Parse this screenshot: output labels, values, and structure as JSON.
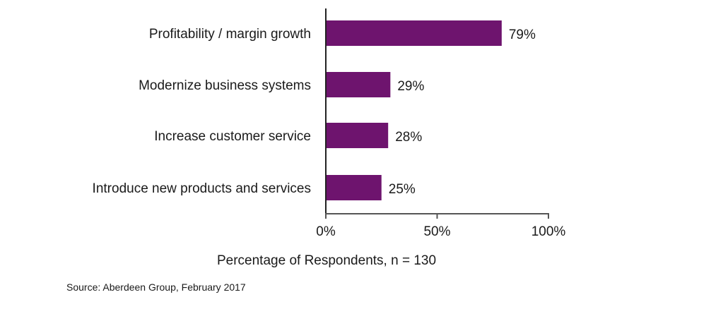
{
  "chart_data": {
    "type": "bar",
    "orientation": "horizontal",
    "title": "",
    "categories": [
      "Profitability  / margin growth",
      "Modernize business systems",
      "Increase customer service",
      "Introduce new products and services"
    ],
    "values": [
      79,
      29,
      28,
      25
    ],
    "value_labels": [
      "79%",
      "29%",
      "28%",
      "25%"
    ],
    "xlabel": "Percentage of Respondents, n = 130",
    "ylabel": "",
    "xlim": [
      0,
      100
    ],
    "xticks": [
      0,
      50,
      100
    ],
    "xtick_labels": [
      "0%",
      "50%",
      "100%"
    ],
    "grid": false,
    "legend": "none",
    "bar_color": "#6e146e",
    "source": "Source: Aberdeen Group,  February 2017"
  }
}
